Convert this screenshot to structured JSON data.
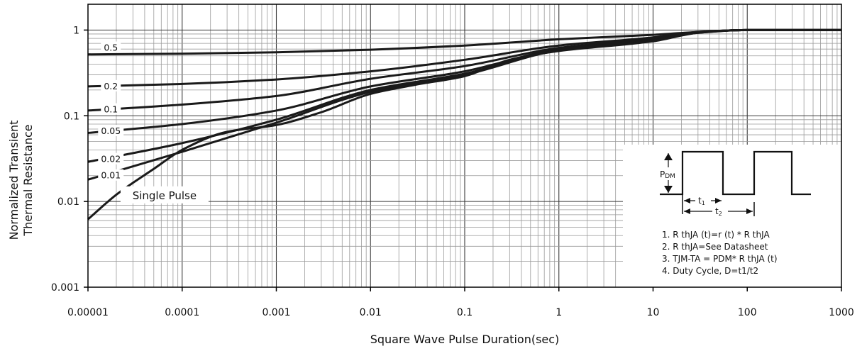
{
  "chart_data": {
    "type": "line",
    "xlabel": "Square Wave Pulse Duration(sec)",
    "ylabel_lines": [
      "Normalized Transient",
      "Thermal Resistance"
    ],
    "x_scale": "log",
    "y_scale": "log",
    "xlim": [
      1e-05,
      1000
    ],
    "ylim": [
      0.001,
      2
    ],
    "grid": true,
    "x_ticks": [
      {
        "value": 1e-05,
        "label": "0.00001"
      },
      {
        "value": 0.0001,
        "label": "0.0001"
      },
      {
        "value": 0.001,
        "label": "0.001"
      },
      {
        "value": 0.01,
        "label": "0.01"
      },
      {
        "value": 0.1,
        "label": "0.1"
      },
      {
        "value": 1,
        "label": "1"
      },
      {
        "value": 10,
        "label": "10"
      },
      {
        "value": 100,
        "label": "100"
      },
      {
        "value": 1000,
        "label": "1000"
      }
    ],
    "y_ticks": [
      {
        "value": 1,
        "label": "1"
      },
      {
        "value": 0.1,
        "label": "0.1"
      },
      {
        "value": 0.01,
        "label": "0.01"
      },
      {
        "value": 0.001,
        "label": "0.001"
      }
    ],
    "series": [
      {
        "name": "0.5",
        "x": [
          1e-05,
          0.0001,
          0.001,
          0.01,
          0.1,
          1,
          10,
          30,
          100,
          1000
        ],
        "y": [
          0.52,
          0.53,
          0.55,
          0.59,
          0.66,
          0.78,
          0.88,
          0.95,
          1.0,
          1.0
        ]
      },
      {
        "name": "0.2",
        "x": [
          1e-05,
          0.0001,
          0.001,
          0.01,
          0.1,
          1,
          10,
          30,
          100,
          1000
        ],
        "y": [
          0.22,
          0.235,
          0.265,
          0.33,
          0.45,
          0.66,
          0.82,
          0.95,
          1.0,
          1.0
        ]
      },
      {
        "name": "0.1",
        "x": [
          1e-05,
          0.0001,
          0.001,
          0.01,
          0.1,
          1,
          10,
          30,
          100,
          1000
        ],
        "y": [
          0.115,
          0.135,
          0.17,
          0.27,
          0.38,
          0.62,
          0.79,
          0.94,
          1.0,
          1.0
        ]
      },
      {
        "name": "0.05",
        "x": [
          1e-05,
          0.0001,
          0.001,
          0.01,
          0.1,
          1,
          10,
          30,
          100,
          1000
        ],
        "y": [
          0.063,
          0.08,
          0.115,
          0.22,
          0.33,
          0.6,
          0.77,
          0.94,
          1.0,
          1.0
        ]
      },
      {
        "name": "0.02",
        "x": [
          1e-05,
          0.0001,
          0.001,
          0.01,
          0.1,
          1,
          10,
          30,
          100,
          1000
        ],
        "y": [
          0.029,
          0.048,
          0.09,
          0.2,
          0.31,
          0.59,
          0.76,
          0.94,
          1.0,
          1.0
        ]
      },
      {
        "name": "0.01",
        "x": [
          1e-05,
          0.0001,
          0.001,
          0.01,
          0.1,
          1,
          10,
          30,
          100,
          1000
        ],
        "y": [
          0.018,
          0.038,
          0.083,
          0.19,
          0.3,
          0.58,
          0.75,
          0.93,
          1.0,
          1.0
        ]
      },
      {
        "name": "Single Pulse",
        "x": [
          1e-05,
          2e-05,
          5e-05,
          0.0001,
          0.0003,
          0.001,
          0.003,
          0.01,
          0.03,
          0.1,
          0.3,
          1,
          10,
          30,
          100,
          1000
        ],
        "y": [
          0.0062,
          0.012,
          0.024,
          0.04,
          0.065,
          0.078,
          0.11,
          0.18,
          0.23,
          0.29,
          0.45,
          0.57,
          0.74,
          0.93,
          1.0,
          1.0
        ]
      }
    ],
    "curve_labels": [
      "0.5",
      "0.2",
      "0.1",
      "0.05",
      "0.02",
      "0.01"
    ],
    "single_pulse_label": "Single Pulse",
    "inset": {
      "pdm_label": "P",
      "pdm_sub": "DM",
      "t1_label": "t",
      "t1_sub": "1",
      "t2_label": "t",
      "t2_sub": "2",
      "notes": [
        "1. R thJA (t)=r (t) * R thJA",
        "2. R thJA=See Datasheet",
        "3. TJM-TA = PDM* R thJA (t)",
        "4. Duty Cycle, D=t1/t2"
      ]
    },
    "colors": {
      "curve": "#1a1a1a",
      "grid": "#9a9a9a",
      "frame": "#000000"
    }
  }
}
